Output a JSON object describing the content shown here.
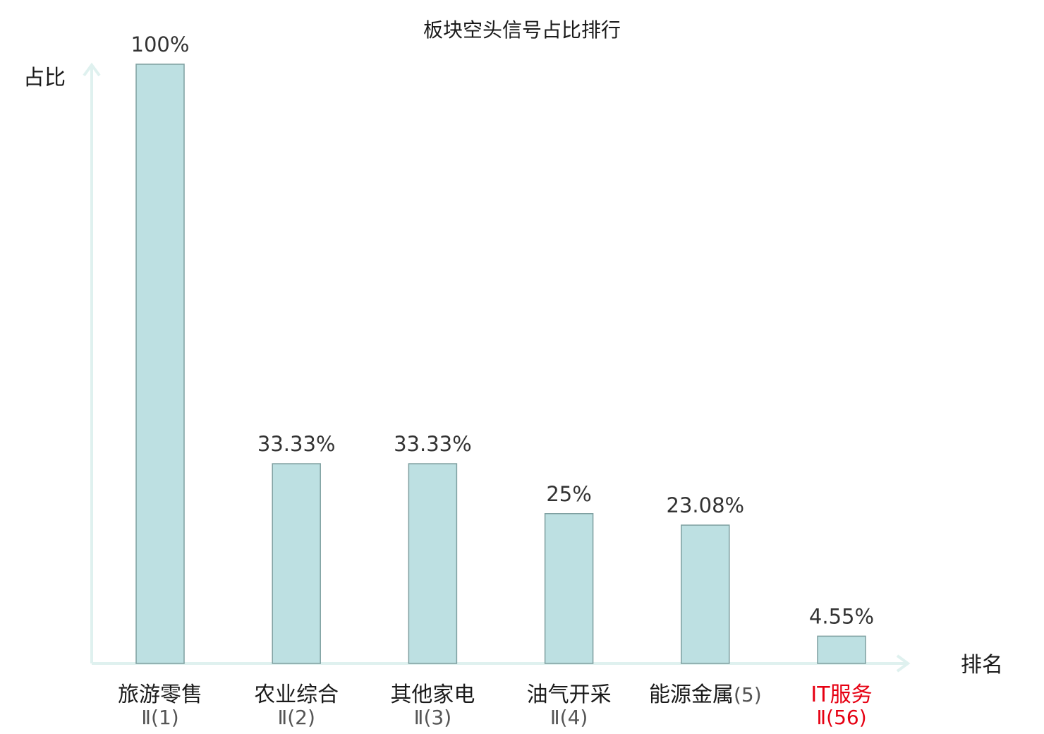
{
  "chart_data": {
    "type": "bar",
    "title": "板块空头信号占比排行",
    "ylabel": "占比",
    "xlabel": "排名",
    "ylim": [
      0,
      100
    ],
    "grid": false,
    "categories": [
      {
        "name": "旅游零售",
        "rank": "Ⅱ(1)",
        "highlight": false
      },
      {
        "name": "农业综合",
        "rank": "Ⅱ(2)",
        "highlight": false
      },
      {
        "name": "其他家电",
        "rank": "Ⅱ(3)",
        "highlight": false
      },
      {
        "name": "油气开采",
        "rank": "Ⅱ(4)",
        "highlight": false
      },
      {
        "name": "能源金属",
        "rank": "(5)",
        "highlight": false
      },
      {
        "name": "IT服务",
        "rank": "Ⅱ(56)",
        "highlight": true
      }
    ],
    "values": [
      100,
      33.33,
      33.33,
      25,
      23.08,
      4.55
    ],
    "value_labels": [
      "100%",
      "33.33%",
      "33.33%",
      "25%",
      "23.08%",
      "4.55%"
    ],
    "colors": {
      "bar_fill": "#bde0e2",
      "bar_stroke": "#7e9fa0",
      "axis": "#dff1ef",
      "highlight": "#e60012"
    }
  }
}
